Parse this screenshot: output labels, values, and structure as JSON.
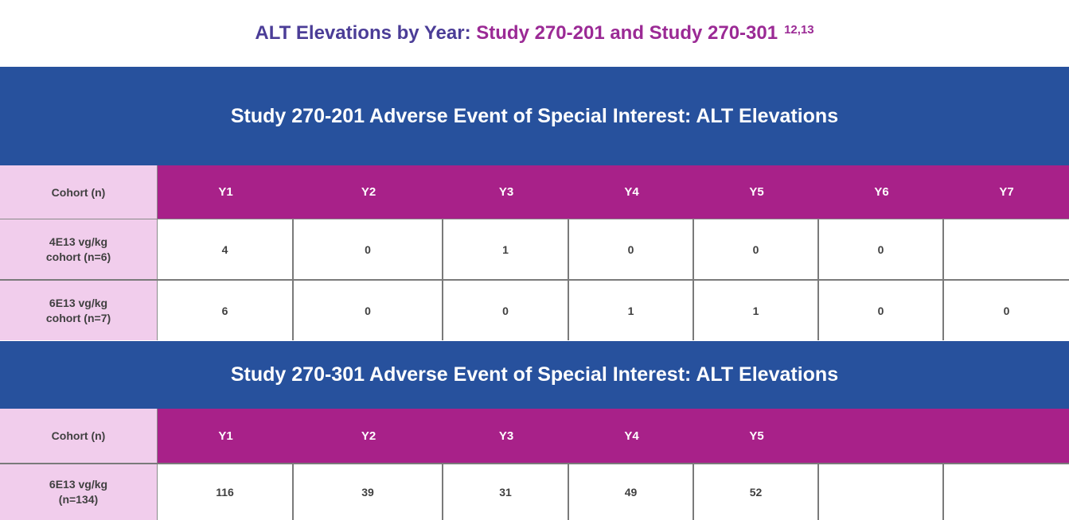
{
  "title": {
    "part1": "ALT Elevations by Year: ",
    "part2": "Study 270-201 and Study 270-301",
    "refs": "12,13"
  },
  "study1": {
    "heading": "Study 270-201 Adverse Event of Special Interest: ALT Elevations",
    "columns": [
      "Cohort (n)",
      "Y1",
      "Y2",
      "Y3",
      "Y4",
      "Y5",
      "Y6",
      "Y7"
    ],
    "rows": [
      {
        "cohort_line1": "4E13 vg/kg",
        "cohort_line2": "cohort (n=6)",
        "values": [
          "4",
          "0",
          "1",
          "0",
          "0",
          "0",
          ""
        ]
      },
      {
        "cohort_line1": "6E13 vg/kg",
        "cohort_line2": "cohort (n=7)",
        "values": [
          "6",
          "0",
          "0",
          "1",
          "1",
          "0",
          "0"
        ]
      }
    ]
  },
  "study2": {
    "heading": "Study 270-301 Adverse Event of Special Interest: ALT Elevations",
    "columns": [
      "Cohort (n)",
      "Y1",
      "Y2",
      "Y3",
      "Y4",
      "Y5",
      "",
      ""
    ],
    "rows": [
      {
        "cohort_line1": "6E13 vg/kg",
        "cohort_line2": "(n=134)",
        "values": [
          "116",
          "39",
          "31",
          "49",
          "52",
          "",
          ""
        ]
      }
    ]
  },
  "colors": {
    "band_blue": "#27519d",
    "header_magenta": "#a82189",
    "cohort_pink": "#f1cdec",
    "title_indigo": "#4b3d97",
    "title_purple": "#9b2a95"
  }
}
